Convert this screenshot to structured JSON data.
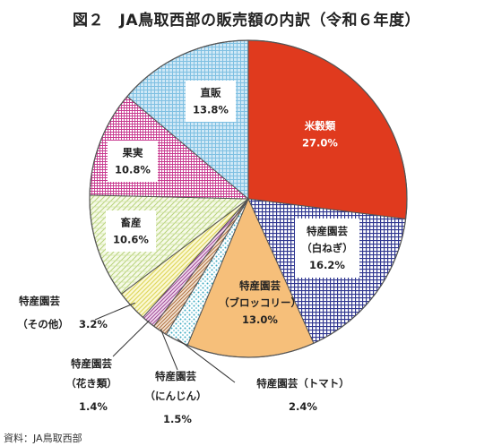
{
  "chart_data": {
    "type": "pie",
    "title": "図２　JA鳥取西部の販売額の内訳（令和６年度）",
    "unit": "%",
    "slices": [
      {
        "name": "米穀類",
        "value": 27.0,
        "label": "27.0%",
        "color": "#e03a1e",
        "pattern": "solid-red"
      },
      {
        "name": "特産園芸（白ねぎ）",
        "name_line1": "特産園芸",
        "name_line2": "（白ねぎ）",
        "value": 16.2,
        "label": "16.2%",
        "color": "#3a3f9a",
        "pattern": "navy-grid"
      },
      {
        "name": "特産園芸（ブロッコリー）",
        "name_line1": "特産園芸",
        "name_line2": "（ブロッコリー）",
        "value": 13.0,
        "label": "13.0%",
        "color": "#f6bf7a",
        "pattern": "solid-orange"
      },
      {
        "name": "特産園芸（トマト）",
        "value": 2.4,
        "label": "2.4%",
        "color": "#4fb6c8",
        "pattern": "cyan-dots"
      },
      {
        "name": "特産園芸（にんじん）",
        "name_line1": "特産園芸",
        "name_line2": "（にんじん）",
        "value": 1.5,
        "label": "1.5%",
        "color": "#c98a5a",
        "pattern": "brown-diagonal"
      },
      {
        "name": "特産園芸（花き類）",
        "name_line1": "特産園芸",
        "name_line2": "（花き類）",
        "value": 1.4,
        "label": "1.4%",
        "color": "#b45aa8",
        "pattern": "magenta-diagonal"
      },
      {
        "name": "特産園芸（その他）",
        "name_line1": "特産園芸",
        "name_line2": "（その他）",
        "value": 3.2,
        "label": "3.2%",
        "color": "#f4f0a0",
        "pattern": "yellow-diagonal"
      },
      {
        "name": "畜産",
        "value": 10.6,
        "label": "10.6%",
        "color": "#d4e6a8",
        "pattern": "green-hatch"
      },
      {
        "name": "果実",
        "value": 10.8,
        "label": "10.8%",
        "color": "#cc3a9a",
        "pattern": "pink-grid"
      },
      {
        "name": "直販",
        "value": 13.8,
        "label": "13.8%",
        "color": "#a9d6ee",
        "pattern": "blue-grid"
      }
    ]
  },
  "source_note": "資料：JA鳥取西部"
}
